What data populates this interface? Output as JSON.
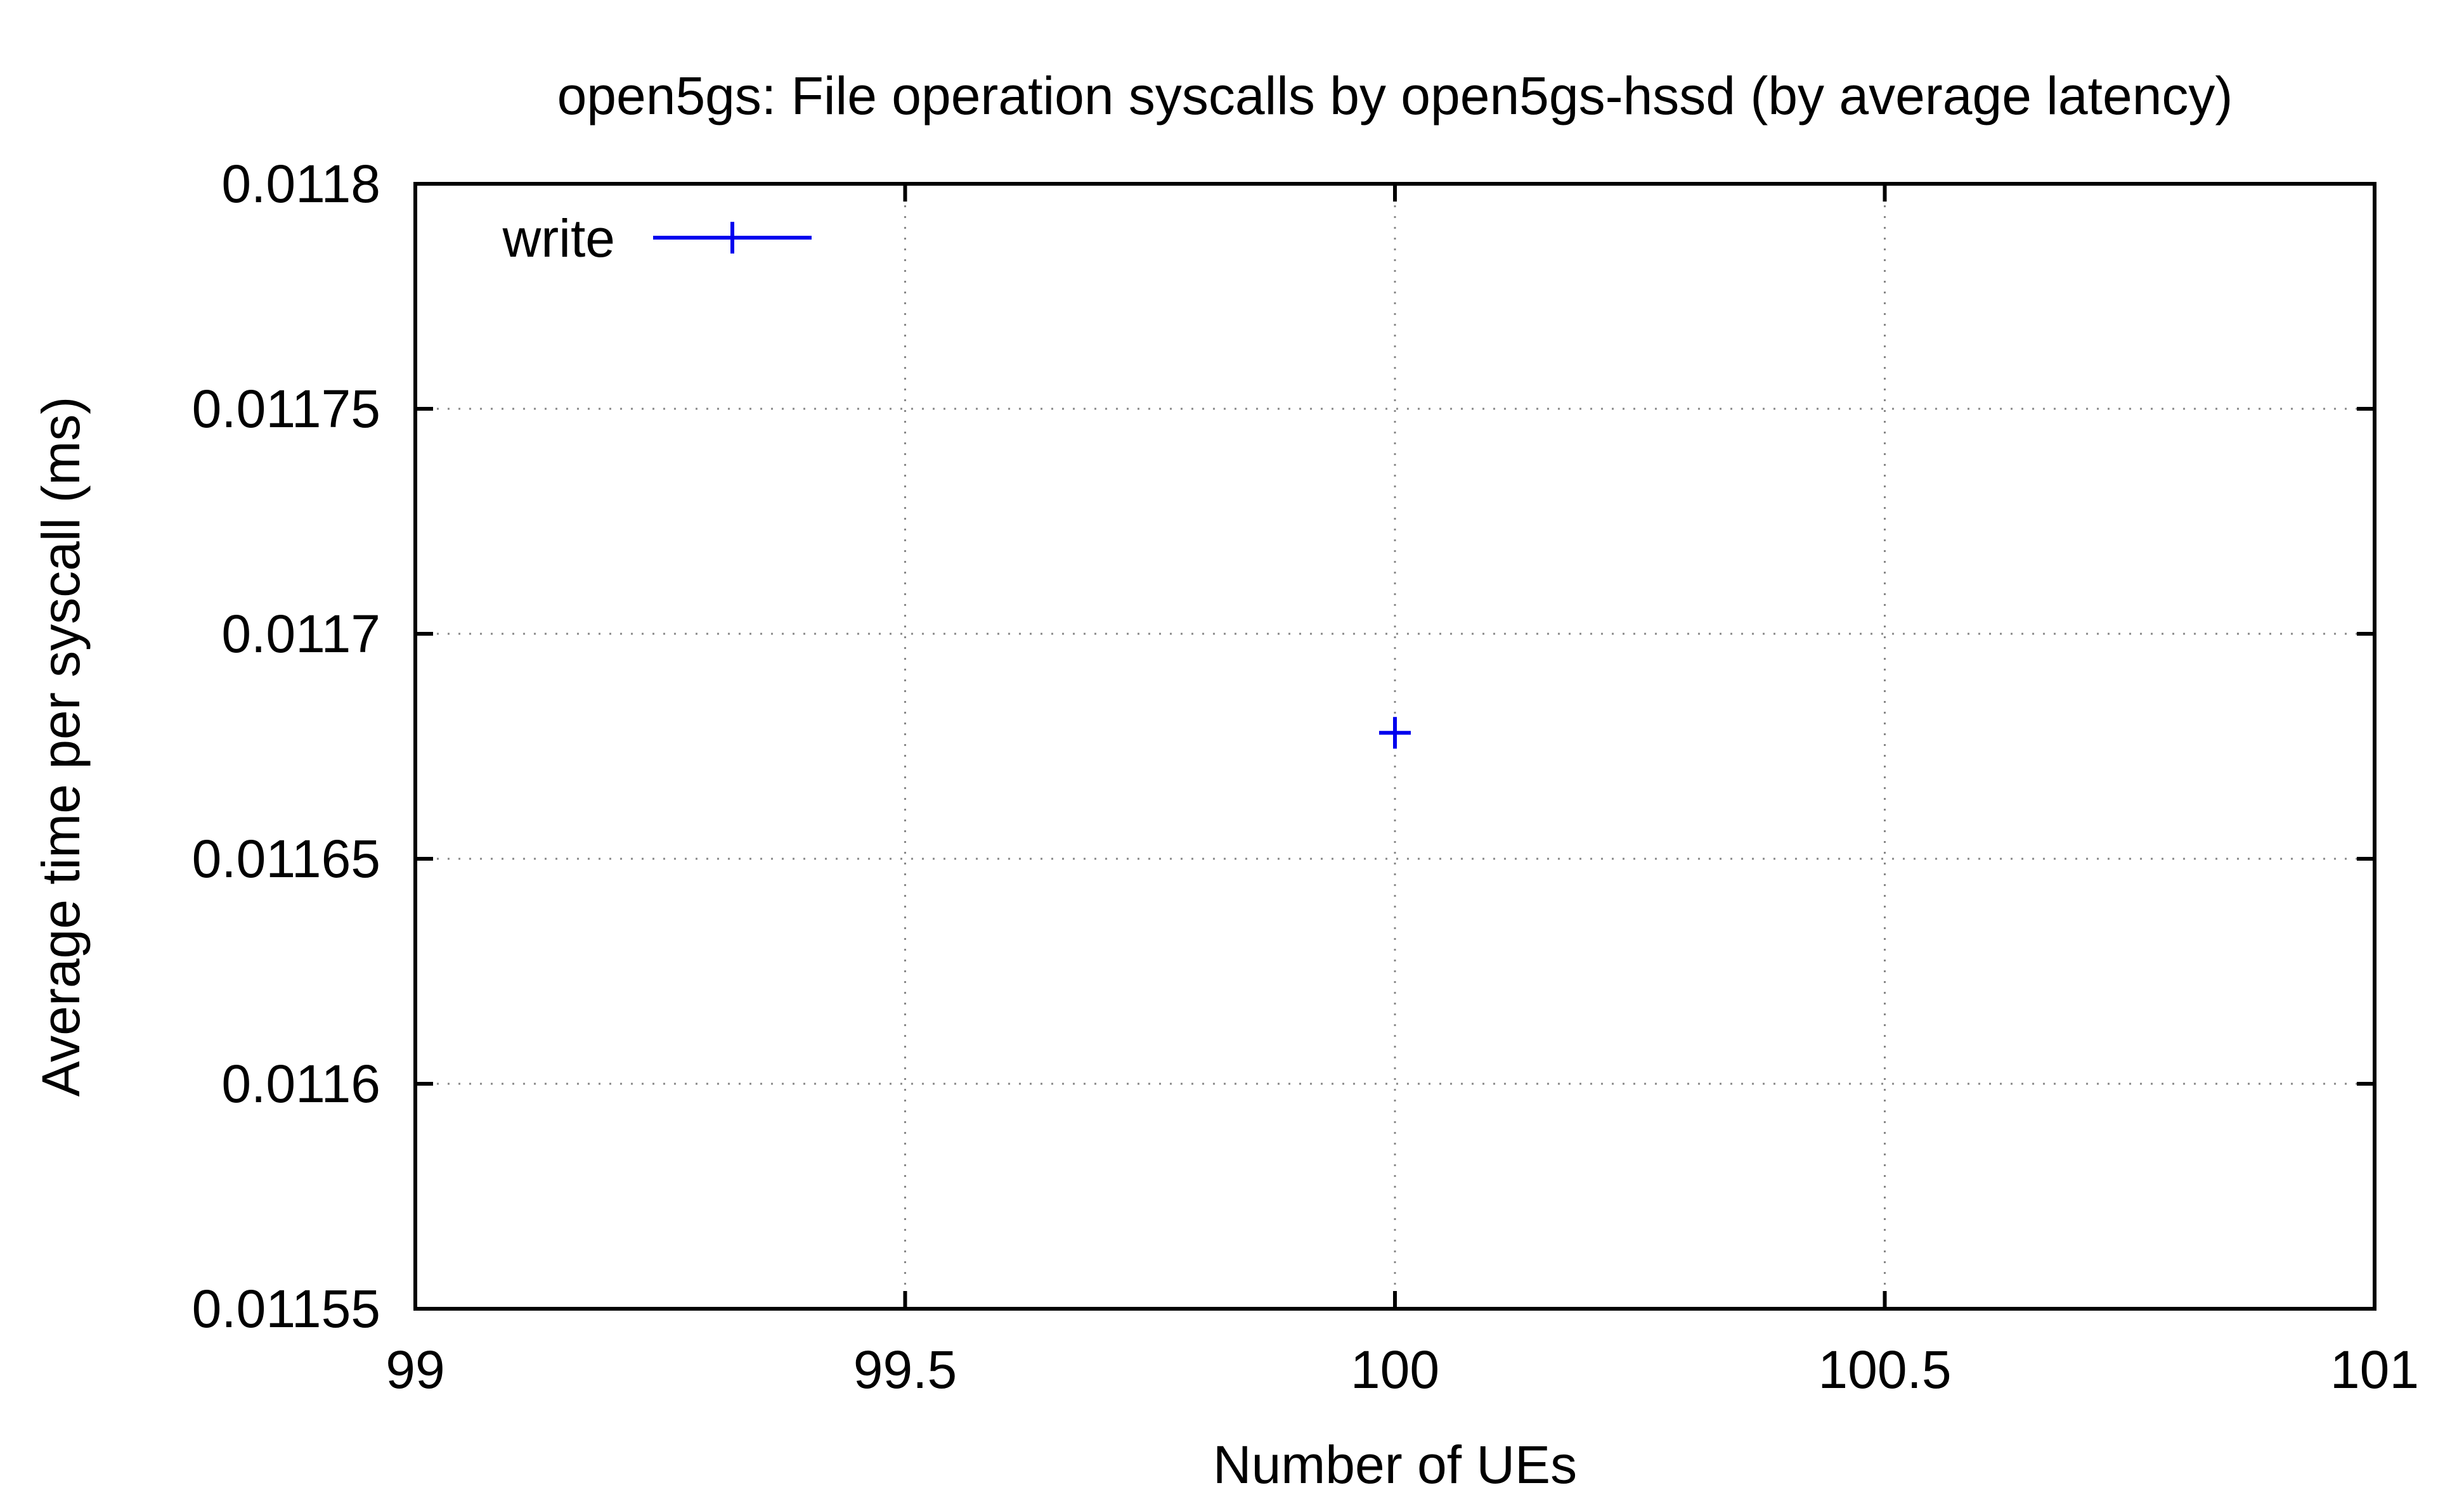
{
  "chart_data": {
    "type": "scatter",
    "title": "open5gs: File operation syscalls by open5gs-hssd (by average latency)",
    "xlabel": "Number of UEs",
    "ylabel": "Average time per syscall (ms)",
    "xlim": [
      99,
      101
    ],
    "ylim": [
      0.01155,
      0.0118
    ],
    "x_ticks": [
      99,
      99.5,
      100,
      100.5,
      101
    ],
    "x_tick_labels": [
      "99",
      "99.5",
      "100",
      "100.5",
      "101"
    ],
    "y_ticks": [
      0.01155,
      0.0116,
      0.01165,
      0.0117,
      0.01175,
      0.0118
    ],
    "y_tick_labels": [
      "0.01155",
      "0.0116",
      "0.01165",
      "0.0117",
      "0.01175",
      "0.0118"
    ],
    "grid": true,
    "legend_position": "top-left",
    "series": [
      {
        "name": "write",
        "color": "#0000ee",
        "marker": "plus",
        "points": [
          {
            "x": 100,
            "y": 0.011678
          }
        ]
      }
    ]
  }
}
